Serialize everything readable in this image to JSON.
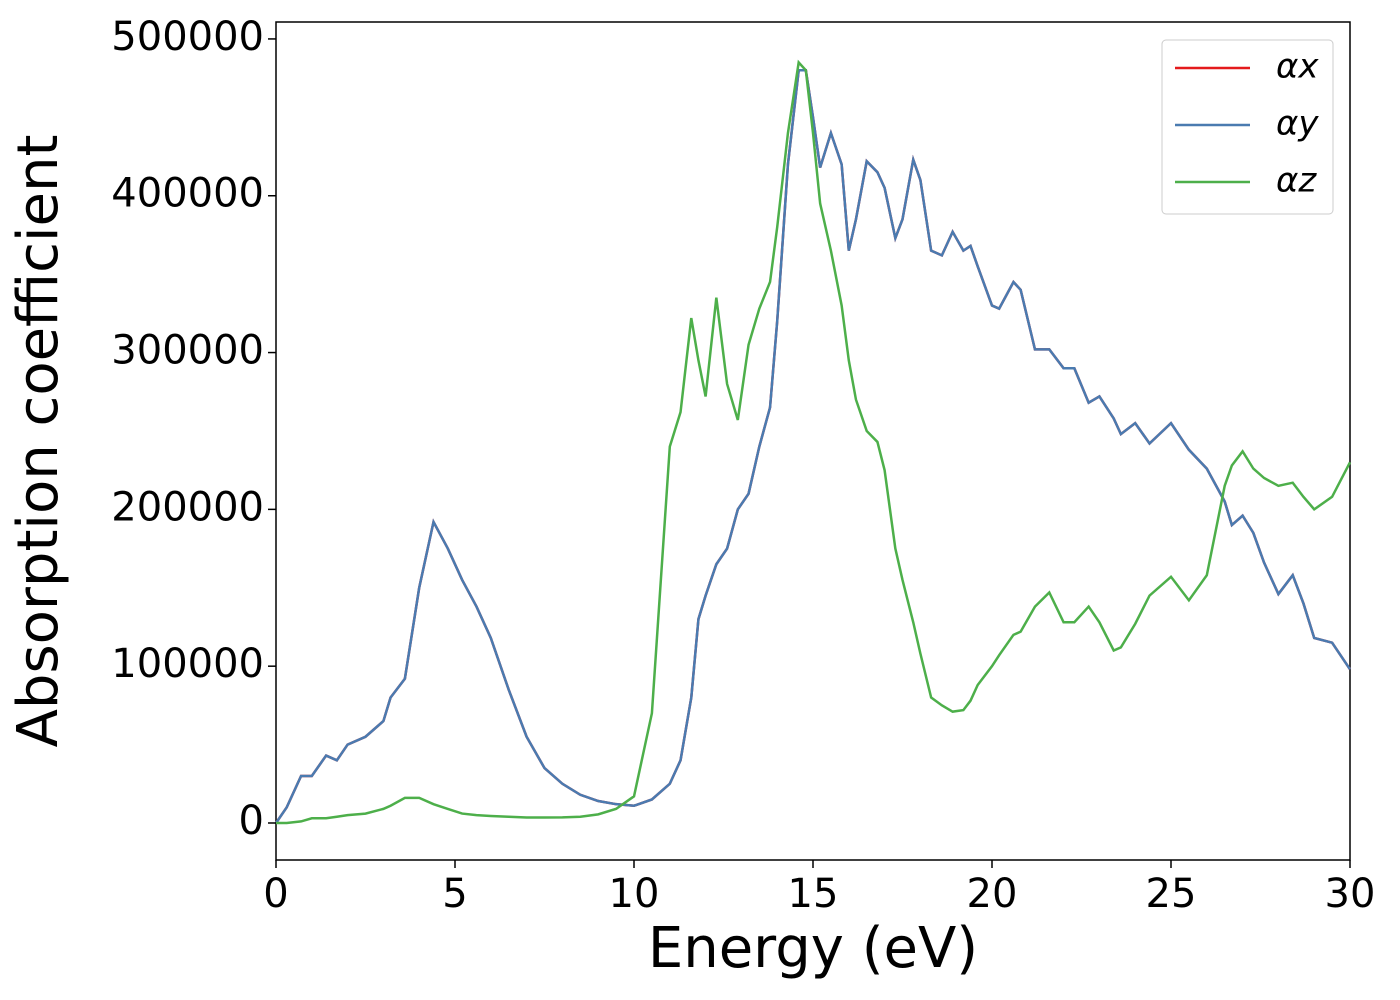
{
  "chart_data": {
    "type": "line",
    "xlabel": "Energy (eV)",
    "ylabel": "Absorption coefficient",
    "x": [
      0,
      0.3,
      0.7,
      1.0,
      1.4,
      1.7,
      2.0,
      2.5,
      3.0,
      3.2,
      3.6,
      4.0,
      4.4,
      4.8,
      5.2,
      5.6,
      6.0,
      6.5,
      7.0,
      7.5,
      8.0,
      8.5,
      9.0,
      9.5,
      10.0,
      10.5,
      11.0,
      11.3,
      11.6,
      11.8,
      12.0,
      12.3,
      12.6,
      12.9,
      13.2,
      13.5,
      13.8,
      14.0,
      14.3,
      14.6,
      14.8,
      15.0,
      15.2,
      15.5,
      15.8,
      16.0,
      16.2,
      16.5,
      16.8,
      17.0,
      17.3,
      17.5,
      17.8,
      18.0,
      18.3,
      18.6,
      18.9,
      19.2,
      19.4,
      19.6,
      20.0,
      20.2,
      20.6,
      20.8,
      21.2,
      21.6,
      22.0,
      22.3,
      22.7,
      23.0,
      23.4,
      23.6,
      24.0,
      24.4,
      25.0,
      25.5,
      26.0,
      26.5,
      26.7,
      27.0,
      27.3,
      27.6,
      28.0,
      28.4,
      28.7,
      29.0,
      29.5,
      30.0
    ],
    "series": [
      {
        "name": "αx",
        "color": "#e41a1c",
        "values": [
          0,
          10000,
          30000,
          30000,
          43000,
          40000,
          50000,
          55000,
          65000,
          80000,
          92000,
          150000,
          192000,
          175000,
          155000,
          138000,
          118000,
          85000,
          55000,
          35000,
          25000,
          18000,
          14000,
          12000,
          11000,
          15000,
          25000,
          40000,
          80000,
          130000,
          145000,
          165000,
          175000,
          200000,
          210000,
          240000,
          265000,
          320000,
          420000,
          480000,
          480000,
          450000,
          418000,
          440000,
          420000,
          365000,
          385000,
          422000,
          415000,
          405000,
          373000,
          385000,
          423000,
          410000,
          365000,
          362000,
          377000,
          365000,
          368000,
          355000,
          330000,
          328000,
          345000,
          340000,
          302000,
          302000,
          290000,
          290000,
          268000,
          272000,
          258000,
          248000,
          255000,
          242000,
          255000,
          238000,
          226000,
          205000,
          190000,
          196000,
          185000,
          166000,
          146000,
          158000,
          140000,
          118000,
          115000,
          98000
        ]
      },
      {
        "name": "αy",
        "color": "#4a7bb0",
        "values": [
          0,
          10000,
          30000,
          30000,
          43000,
          40000,
          50000,
          55000,
          65000,
          80000,
          92000,
          150000,
          192000,
          175000,
          155000,
          138000,
          118000,
          85000,
          55000,
          35000,
          25000,
          18000,
          14000,
          12000,
          11000,
          15000,
          25000,
          40000,
          80000,
          130000,
          145000,
          165000,
          175000,
          200000,
          210000,
          240000,
          265000,
          320000,
          420000,
          480000,
          480000,
          450000,
          418000,
          440000,
          420000,
          365000,
          385000,
          422000,
          415000,
          405000,
          373000,
          385000,
          423000,
          410000,
          365000,
          362000,
          377000,
          365000,
          368000,
          355000,
          330000,
          328000,
          345000,
          340000,
          302000,
          302000,
          290000,
          290000,
          268000,
          272000,
          258000,
          248000,
          255000,
          242000,
          255000,
          238000,
          226000,
          205000,
          190000,
          196000,
          185000,
          166000,
          146000,
          158000,
          140000,
          118000,
          115000,
          98000
        ]
      },
      {
        "name": "αz",
        "color": "#4daf4a",
        "values": [
          0,
          0,
          1000,
          3000,
          3000,
          4000,
          5000,
          6000,
          9000,
          11000,
          16000,
          16000,
          12000,
          9000,
          6000,
          5000,
          4500,
          4000,
          3500,
          3500,
          3600,
          4000,
          5500,
          9000,
          17000,
          70000,
          240000,
          262000,
          322000,
          295000,
          272000,
          335000,
          280000,
          257000,
          305000,
          328000,
          345000,
          380000,
          440000,
          485000,
          480000,
          440000,
          395000,
          365000,
          330000,
          295000,
          270000,
          250000,
          243000,
          225000,
          175000,
          155000,
          128000,
          108000,
          80000,
          75000,
          71000,
          72000,
          78000,
          88000,
          100000,
          107000,
          120000,
          122000,
          138000,
          147000,
          128000,
          128000,
          138000,
          128000,
          110000,
          112000,
          127000,
          145000,
          157000,
          142000,
          158000,
          215000,
          228000,
          237000,
          226000,
          220000,
          215000,
          217000,
          208000,
          200000,
          208000,
          230000
        ]
      }
    ],
    "xlim": [
      0,
      30
    ],
    "xticks": [
      0,
      5,
      10,
      15,
      20,
      25,
      30
    ],
    "ylim": [
      -23600,
      510800
    ],
    "yticks": [
      0,
      100000,
      200000,
      300000,
      400000,
      500000
    ],
    "legend": "upper right",
    "grid": false
  }
}
